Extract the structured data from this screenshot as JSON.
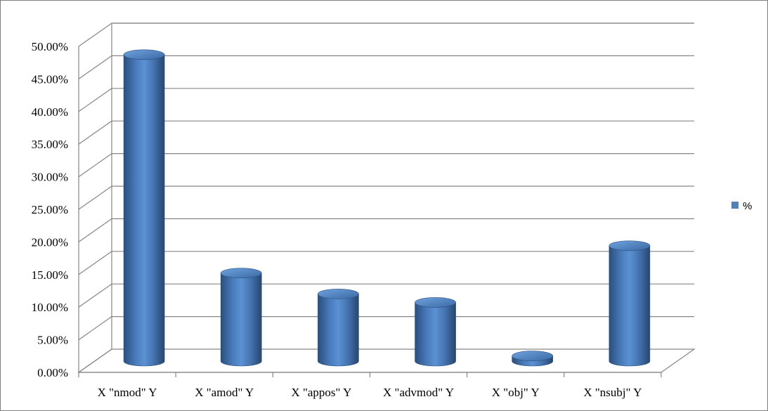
{
  "chart_data": {
    "type": "bar",
    "style": "3d-cylinder",
    "categories": [
      "X \"nmod\" Y",
      "X \"amod\" Y",
      "X \"appos\" Y",
      "X \"advmod\" Y",
      "X \"obj\" Y",
      "X \"nsubj\" Y"
    ],
    "series": [
      {
        "name": "%",
        "values": [
          47.0,
          13.5,
          10.3,
          9.0,
          0.8,
          17.7
        ],
        "color": "#4f81bd"
      }
    ],
    "yticks": [
      "0.00%",
      "5.00%",
      "10.00%",
      "15.00%",
      "20.00%",
      "25.00%",
      "30.00%",
      "35.00%",
      "40.00%",
      "45.00%",
      "50.00%"
    ],
    "ylim": [
      0,
      50
    ],
    "grid": true,
    "legend": {
      "position": "right",
      "entries": [
        "%"
      ]
    }
  }
}
